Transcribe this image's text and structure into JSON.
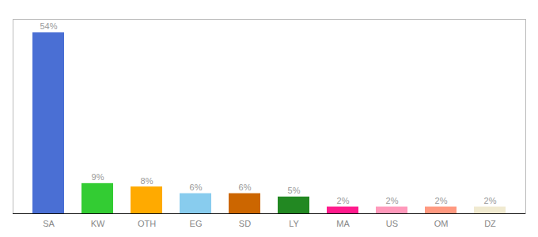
{
  "chart_data": {
    "type": "bar",
    "categories": [
      "SA",
      "KW",
      "OTH",
      "EG",
      "SD",
      "LY",
      "MA",
      "US",
      "OM",
      "DZ"
    ],
    "values": [
      54,
      9,
      8,
      6,
      6,
      5,
      2,
      2,
      2,
      2
    ],
    "value_labels": [
      "54%",
      "9%",
      "8%",
      "6%",
      "6%",
      "5%",
      "2%",
      "2%",
      "2%",
      "2%"
    ],
    "colors": [
      "#4a6fd4",
      "#33cc33",
      "#ffaa00",
      "#88ccee",
      "#cc6600",
      "#228822",
      "#ff1a8c",
      "#ff99bb",
      "#ff9980",
      "#f0ead0"
    ],
    "ylim": [
      0,
      58
    ],
    "data_labels": true,
    "tick_labels": "x",
    "grid": false
  }
}
